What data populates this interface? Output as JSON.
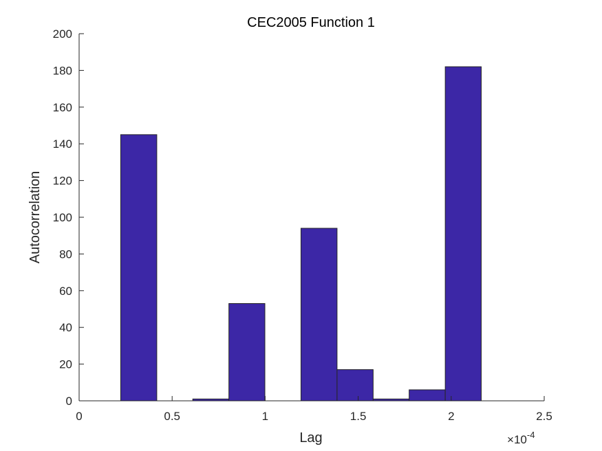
{
  "chart_data": {
    "type": "bar",
    "title": "CEC2005 Function 1",
    "xlabel": "Lag",
    "ylabel": "Autocorrelation",
    "x_multiplier_base": "10",
    "x_multiplier_exp": "-4",
    "x_multiplier_prefix": "×",
    "xlim": [
      0,
      2.5
    ],
    "ylim": [
      0,
      200
    ],
    "xticks": [
      0,
      0.5,
      1,
      1.5,
      2,
      2.5
    ],
    "xtick_labels": [
      "0",
      "0.5",
      "1",
      "1.5",
      "2",
      "2.5"
    ],
    "yticks": [
      0,
      20,
      40,
      60,
      80,
      100,
      120,
      140,
      160,
      180,
      200
    ],
    "ytick_labels": [
      "0",
      "20",
      "40",
      "60",
      "80",
      "100",
      "120",
      "140",
      "160",
      "180",
      "200"
    ],
    "bin_edges": [
      0.2235,
      0.4175,
      0.611,
      0.805,
      0.9985,
      1.1925,
      1.3865,
      1.5805,
      1.774,
      1.968,
      2.1615
    ],
    "values": [
      145,
      0,
      1,
      53,
      0,
      94,
      17,
      1,
      6,
      182
    ],
    "bar_color": "#3c27a6",
    "edge_color": "#262626",
    "grid": false
  }
}
